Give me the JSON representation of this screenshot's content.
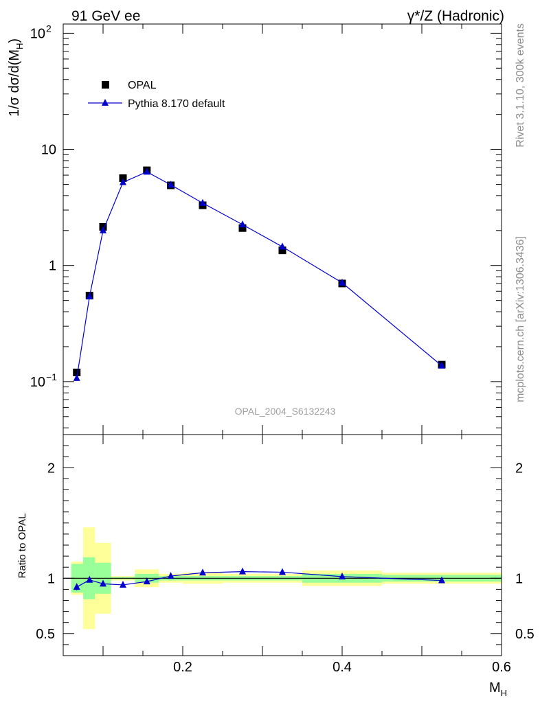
{
  "header": {
    "left": "91 GeV ee",
    "right": "γ*/Z (Hadronic)"
  },
  "side_labels": {
    "rivet": "Rivet 3.1.10,  300k events",
    "mcplots": "mcplots.cern.ch [arXiv:1306.3436]"
  },
  "analysis_id": "OPAL_2004_S6132243",
  "legend": {
    "data_label": "OPAL",
    "mc_label": "Pythia 8.170 default"
  },
  "colors": {
    "data": "#000000",
    "mc": "#0000cc",
    "band_inner": "#99ff99",
    "band_outer": "#ffff99"
  },
  "chart_data": [
    {
      "type": "scatter",
      "panel": "main",
      "ylabel_parts": {
        "main": "1/σ dσ/d(M",
        "sub": "H",
        "close": ")"
      },
      "xlim": [
        0.05,
        0.6
      ],
      "ylim": [
        0.035,
        120
      ],
      "log_y": true,
      "y_ticks": [
        {
          "value": 0.1,
          "base": "10",
          "exp": "−1"
        },
        {
          "value": 1,
          "base": "1",
          "exp": ""
        },
        {
          "value": 10,
          "base": "10",
          "exp": ""
        },
        {
          "value": 100,
          "base": "10",
          "exp": "2"
        }
      ],
      "series": [
        {
          "name": "OPAL",
          "style": "markers",
          "x": [
            0.067,
            0.083,
            0.1,
            0.125,
            0.155,
            0.185,
            0.225,
            0.275,
            0.325,
            0.4,
            0.525
          ],
          "values": [
            0.12,
            0.55,
            2.15,
            5.65,
            6.6,
            4.9,
            3.3,
            2.1,
            1.35,
            0.7,
            0.14
          ]
        },
        {
          "name": "Pythia 8.170 default",
          "style": "line-triangles",
          "x": [
            0.067,
            0.083,
            0.1,
            0.125,
            0.155,
            0.185,
            0.225,
            0.275,
            0.325,
            0.4,
            0.525
          ],
          "values": [
            0.107,
            0.54,
            2.0,
            5.2,
            6.4,
            4.95,
            3.45,
            2.25,
            1.45,
            0.71,
            0.137
          ]
        }
      ]
    },
    {
      "type": "line",
      "panel": "ratio",
      "ylabel": "Ratio to OPAL",
      "xlabel_parts": {
        "main": "M",
        "sub": "H"
      },
      "xlim": [
        0.05,
        0.6
      ],
      "ylim": [
        0.3,
        2.3
      ],
      "x_ticks": [
        "0.2",
        "0.4",
        "0.6"
      ],
      "x_tick_values": [
        0.2,
        0.4,
        0.6
      ],
      "y_ticks": [
        "0.5",
        "1",
        "2"
      ],
      "y_tick_values": [
        0.5,
        1,
        2
      ],
      "bands": [
        {
          "x0": 0.06,
          "x1": 0.075,
          "inner": [
            0.87,
            1.13
          ],
          "outer": [
            0.85,
            1.15
          ]
        },
        {
          "x0": 0.075,
          "x1": 0.09,
          "inner": [
            0.81,
            1.19
          ],
          "outer": [
            0.54,
            1.46
          ]
        },
        {
          "x0": 0.09,
          "x1": 0.11,
          "inner": [
            0.86,
            1.14
          ],
          "outer": [
            0.68,
            1.32
          ]
        },
        {
          "x0": 0.11,
          "x1": 0.14,
          "inner": [
            0.99,
            1.01
          ],
          "outer": [
            0.98,
            1.02
          ]
        },
        {
          "x0": 0.14,
          "x1": 0.17,
          "inner": [
            0.96,
            1.04
          ],
          "outer": [
            0.92,
            1.08
          ]
        },
        {
          "x0": 0.17,
          "x1": 0.2,
          "inner": [
            0.98,
            1.02
          ],
          "outer": [
            0.96,
            1.04
          ]
        },
        {
          "x0": 0.2,
          "x1": 0.25,
          "inner": [
            0.98,
            1.02
          ],
          "outer": [
            0.95,
            1.05
          ]
        },
        {
          "x0": 0.25,
          "x1": 0.3,
          "inner": [
            0.98,
            1.02
          ],
          "outer": [
            0.96,
            1.04
          ]
        },
        {
          "x0": 0.3,
          "x1": 0.35,
          "inner": [
            0.98,
            1.02
          ],
          "outer": [
            0.96,
            1.04
          ]
        },
        {
          "x0": 0.35,
          "x1": 0.45,
          "inner": [
            0.96,
            1.04
          ],
          "outer": [
            0.93,
            1.07
          ]
        },
        {
          "x0": 0.45,
          "x1": 0.6,
          "inner": [
            0.97,
            1.03
          ],
          "outer": [
            0.95,
            1.05
          ]
        }
      ],
      "series": [
        {
          "name": "Pythia 8.170 default",
          "x": [
            0.067,
            0.083,
            0.1,
            0.125,
            0.155,
            0.185,
            0.225,
            0.275,
            0.325,
            0.4,
            0.525
          ],
          "values": [
            0.92,
            0.985,
            0.95,
            0.94,
            0.97,
            1.02,
            1.05,
            1.06,
            1.055,
            1.015,
            0.98
          ],
          "error_low": [
            0.03,
            0,
            0,
            0,
            0,
            0,
            0,
            0,
            0,
            0,
            0
          ],
          "error_high": [
            0.03,
            0,
            0,
            0,
            0,
            0,
            0,
            0,
            0,
            0,
            0
          ]
        }
      ]
    }
  ]
}
